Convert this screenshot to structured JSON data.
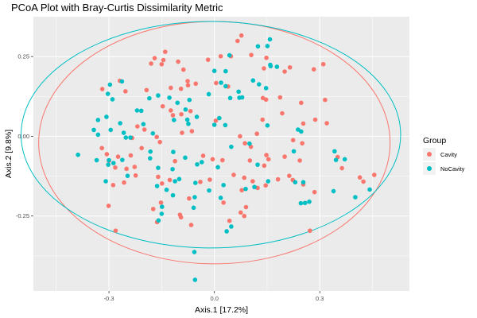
{
  "chart_data": {
    "type": "scatter",
    "title": "PCoA Plot with Bray-Curtis Dissimilarity Metric",
    "xlabel": "Axis.1   [17.2%]",
    "ylabel": "Axis.2   [9.8%]",
    "xlim": [
      -0.515,
      0.555
    ],
    "ylim": [
      -0.485,
      0.375
    ],
    "x_ticks": [
      {
        "value": -0.3,
        "label": "-0.3"
      },
      {
        "value": 0.0,
        "label": "0.0"
      },
      {
        "value": 0.3,
        "label": "0.3"
      }
    ],
    "y_ticks": [
      {
        "value": 0.25,
        "label": "0.25"
      },
      {
        "value": 0.0,
        "label": "0.00"
      },
      {
        "value": -0.25,
        "label": "-0.25"
      }
    ],
    "grid": true,
    "legend": {
      "title": "Group",
      "position": "right",
      "entries": [
        {
          "label": "Cavity",
          "color": "#F8766D"
        },
        {
          "label": "NoCavity",
          "color": "#00BFC4"
        }
      ]
    },
    "series": [
      {
        "name": "Cavity",
        "color": "#F8766D",
        "ellipse": {
          "cx": 0.0,
          "cy": -0.02,
          "rx": 0.5,
          "ry": 0.38
        },
        "points": [
          [
            0.077,
            0.316
          ],
          [
            0.066,
            0.299
          ],
          [
            -0.14,
            0.265
          ],
          [
            -0.145,
            0.239
          ],
          [
            -0.17,
            0.245
          ],
          [
            -0.18,
            0.228
          ],
          [
            -0.15,
            0.226
          ],
          [
            -0.103,
            0.234
          ],
          [
            0.018,
            0.251
          ],
          [
            -0.018,
            0.24
          ],
          [
            0.047,
            0.251
          ],
          [
            0.105,
            0.255
          ],
          [
            0.148,
            0.246
          ],
          [
            0.141,
            0.213
          ],
          [
            0.215,
            0.216
          ],
          [
            0.283,
            0.21
          ],
          [
            0.31,
            0.226
          ],
          [
            0.2,
            0.203
          ],
          [
            -0.088,
            0.209
          ],
          [
            -0.076,
            0.173
          ],
          [
            -0.075,
            0.16
          ],
          [
            -0.095,
            0.149
          ],
          [
            -0.053,
            0.165
          ],
          [
            0.005,
            0.167
          ],
          [
            0.039,
            0.156
          ],
          [
            -0.269,
            0.174
          ],
          [
            -0.319,
            0.148
          ],
          [
            -0.253,
            0.141
          ],
          [
            -0.193,
            0.145
          ],
          [
            -0.124,
            0.152
          ],
          [
            -0.147,
            0.094
          ],
          [
            -0.124,
            0.081
          ],
          [
            -0.118,
            0.066
          ],
          [
            -0.094,
            0.069
          ],
          [
            -0.068,
            0.079
          ],
          [
            0.138,
            0.12
          ],
          [
            0.187,
            0.122
          ],
          [
            0.247,
            0.105
          ],
          [
            0.147,
            0.115
          ],
          [
            0.315,
            0.114
          ],
          [
            -0.219,
            0.031
          ],
          [
            -0.199,
            0.021
          ],
          [
            -0.234,
            -0.005
          ],
          [
            -0.164,
            -0.002
          ],
          [
            -0.092,
            0.011
          ],
          [
            -0.064,
            0.016
          ],
          [
            0.004,
            0.049
          ],
          [
            0.137,
            0.052
          ],
          [
            0.193,
            0.072
          ],
          [
            0.287,
            0.052
          ],
          [
            0.253,
            0.04
          ],
          [
            0.32,
            0.041
          ],
          [
            -0.155,
            -0.018
          ],
          [
            0.073,
            0.0
          ],
          [
            0.121,
            0.008
          ],
          [
            -0.32,
            -0.037
          ],
          [
            -0.207,
            -0.037
          ],
          [
            0.087,
            -0.022
          ],
          [
            0.104,
            -0.033
          ],
          [
            0.25,
            -0.022
          ],
          [
            0.224,
            -0.012
          ],
          [
            -0.306,
            -0.056
          ],
          [
            -0.274,
            -0.064
          ],
          [
            -0.3,
            -0.077
          ],
          [
            -0.238,
            -0.06
          ],
          [
            0.148,
            -0.059
          ],
          [
            0.154,
            -0.072
          ],
          [
            -0.005,
            -0.072
          ],
          [
            -0.032,
            -0.061
          ],
          [
            -0.112,
            -0.078
          ],
          [
            0.023,
            -0.075
          ],
          [
            0.101,
            -0.076
          ],
          [
            0.142,
            -0.092
          ],
          [
            0.2,
            -0.064
          ],
          [
            0.243,
            -0.076
          ],
          [
            0.351,
            -0.065
          ],
          [
            0.363,
            -0.1
          ],
          [
            -0.282,
            -0.098
          ],
          [
            -0.25,
            -0.102
          ],
          [
            -0.227,
            -0.096
          ],
          [
            -0.224,
            -0.123
          ],
          [
            -0.16,
            -0.127
          ],
          [
            -0.149,
            -0.148
          ],
          [
            -0.127,
            -0.137
          ],
          [
            -0.04,
            -0.143
          ],
          [
            -0.013,
            -0.136
          ],
          [
            0.055,
            -0.121
          ],
          [
            0.085,
            -0.13
          ],
          [
            0.109,
            -0.141
          ],
          [
            0.181,
            -0.135
          ],
          [
            0.213,
            -0.124
          ],
          [
            0.223,
            -0.137
          ],
          [
            0.253,
            -0.151
          ],
          [
            0.414,
            -0.129
          ],
          [
            0.424,
            -0.142
          ],
          [
            0.455,
            -0.121
          ],
          [
            -0.288,
            -0.153
          ],
          [
            -0.257,
            -0.145
          ],
          [
            -0.301,
            -0.218
          ],
          [
            -0.174,
            -0.228
          ],
          [
            -0.152,
            -0.208
          ],
          [
            -0.072,
            -0.195
          ],
          [
            0.078,
            -0.169
          ],
          [
            0.123,
            -0.162
          ],
          [
            0.146,
            -0.154
          ],
          [
            0.285,
            -0.175
          ],
          [
            -0.098,
            -0.246
          ],
          [
            -0.095,
            -0.254
          ],
          [
            -0.281,
            -0.296
          ],
          [
            -0.163,
            -0.269
          ],
          [
            0.09,
            -0.222
          ],
          [
            0.075,
            -0.239
          ],
          [
            0.085,
            -0.25
          ],
          [
            -0.066,
            -0.278
          ],
          [
            0.026,
            -0.208
          ],
          [
            0.043,
            -0.265
          ],
          [
            0.272,
            -0.296
          ]
        ]
      },
      {
        "name": "NoCavity",
        "color": "#00BFC4",
        "ellipse": {
          "cx": -0.01,
          "cy": 0.005,
          "rx": 0.54,
          "ry": 0.355
        },
        "points": [
          [
            0.158,
            0.304
          ],
          [
            0.124,
            0.282
          ],
          [
            0.151,
            0.283
          ],
          [
            0.043,
            0.254
          ],
          [
            0.159,
            0.224
          ],
          [
            0.16,
            0.22
          ],
          [
            0.0,
            0.205
          ],
          [
            0.178,
            0.218
          ],
          [
            0.032,
            0.204
          ],
          [
            0.019,
            0.168
          ],
          [
            0.147,
            0.151
          ],
          [
            0.032,
            0.157
          ],
          [
            0.11,
            0.175
          ],
          [
            0.127,
            0.163
          ],
          [
            0.069,
            0.14
          ],
          [
            -0.297,
            0.162
          ],
          [
            -0.263,
            0.172
          ],
          [
            -0.303,
            0.133
          ],
          [
            -0.29,
            0.116
          ],
          [
            -0.185,
            0.119
          ],
          [
            -0.16,
            0.128
          ],
          [
            -0.128,
            0.121
          ],
          [
            -0.105,
            0.105
          ],
          [
            -0.082,
            0.084
          ],
          [
            -0.071,
            0.114
          ],
          [
            -0.016,
            0.132
          ],
          [
            0.045,
            0.12
          ],
          [
            0.071,
            0.121
          ],
          [
            0.079,
            0.122
          ],
          [
            -0.22,
            0.081
          ],
          [
            -0.208,
            0.08
          ],
          [
            -0.077,
            0.052
          ],
          [
            -0.074,
            0.039
          ],
          [
            -0.05,
            0.061
          ],
          [
            0.014,
            0.057
          ],
          [
            0.0,
            0.036
          ],
          [
            0.031,
            0.035
          ],
          [
            -0.331,
            0.051
          ],
          [
            -0.307,
            0.061
          ],
          [
            -0.295,
            0.02
          ],
          [
            -0.268,
            0.041
          ],
          [
            -0.202,
            0.038
          ],
          [
            -0.115,
            0.051
          ],
          [
            0.151,
            0.034
          ],
          [
            -0.258,
            0.011
          ],
          [
            -0.343,
            0.02
          ],
          [
            -0.331,
            0.005
          ],
          [
            -0.175,
            0.009
          ],
          [
            0.238,
            0.021
          ],
          [
            0.247,
            0.015
          ],
          [
            0.226,
            -0.047
          ],
          [
            -0.239,
            -0.004
          ],
          [
            -0.252,
            -0.004
          ],
          [
            -0.182,
            -0.048
          ],
          [
            -0.117,
            -0.049
          ],
          [
            0.048,
            -0.033
          ],
          [
            0.1,
            -0.023
          ],
          [
            -0.388,
            -0.058
          ],
          [
            -0.335,
            -0.075
          ],
          [
            -0.3,
            -0.075
          ],
          [
            -0.287,
            -0.084
          ],
          [
            -0.262,
            -0.074
          ],
          [
            -0.302,
            -0.089
          ],
          [
            -0.183,
            -0.069
          ],
          [
            -0.16,
            -0.099
          ],
          [
            -0.083,
            -0.067
          ],
          [
            -0.049,
            -0.088
          ],
          [
            -0.036,
            -0.081
          ],
          [
            -0.119,
            -0.103
          ],
          [
            0.01,
            -0.097
          ],
          [
            0.123,
            -0.089
          ],
          [
            0.342,
            -0.047
          ],
          [
            0.346,
            -0.074
          ],
          [
            0.371,
            -0.072
          ],
          [
            -0.309,
            -0.141
          ],
          [
            -0.247,
            -0.124
          ],
          [
            -0.163,
            -0.156
          ],
          [
            -0.136,
            -0.168
          ],
          [
            -0.112,
            -0.141
          ],
          [
            -0.1,
            -0.134
          ],
          [
            -0.054,
            -0.146
          ],
          [
            -0.015,
            -0.17
          ],
          [
            0.026,
            -0.153
          ],
          [
            0.114,
            -0.159
          ],
          [
            0.153,
            -0.141
          ],
          [
            0.23,
            -0.144
          ],
          [
            0.253,
            -0.144
          ],
          [
            0.27,
            -0.205
          ],
          [
            0.246,
            -0.21
          ],
          [
            0.258,
            -0.209
          ],
          [
            0.339,
            -0.172
          ],
          [
            0.442,
            -0.167
          ],
          [
            0.401,
            -0.191
          ],
          [
            -0.118,
            -0.185
          ],
          [
            -0.056,
            -0.191
          ],
          [
            -0.059,
            -0.224
          ],
          [
            -0.149,
            -0.221
          ],
          [
            -0.15,
            -0.243
          ],
          [
            -0.159,
            -0.264
          ],
          [
            0.018,
            -0.193
          ],
          [
            0.035,
            -0.298
          ],
          [
            0.048,
            -0.283
          ],
          [
            0.089,
            -0.165
          ],
          [
            -0.057,
            -0.363
          ],
          [
            -0.055,
            -0.45
          ]
        ]
      }
    ]
  }
}
